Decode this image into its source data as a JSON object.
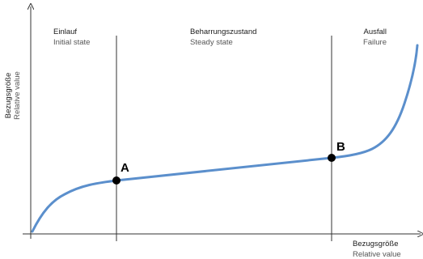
{
  "y_axis": {
    "label_de": "Bezugsgröße",
    "label_en": "Relative value"
  },
  "x_axis": {
    "label_de": "Bezugsgröße",
    "label_en": "Relative value"
  },
  "phases": [
    {
      "label_de": "Einlauf",
      "label_en": "Initial state"
    },
    {
      "label_de": "Beharrungszustand",
      "label_en": "Steady state"
    },
    {
      "label_de": "Ausfall",
      "label_en": "Failure"
    }
  ],
  "points": [
    {
      "label": "A"
    },
    {
      "label": "B"
    }
  ],
  "colors": {
    "curve": "#5b8fcc",
    "axes": "#333333",
    "dividers": "#333333",
    "points": "#000000"
  }
}
